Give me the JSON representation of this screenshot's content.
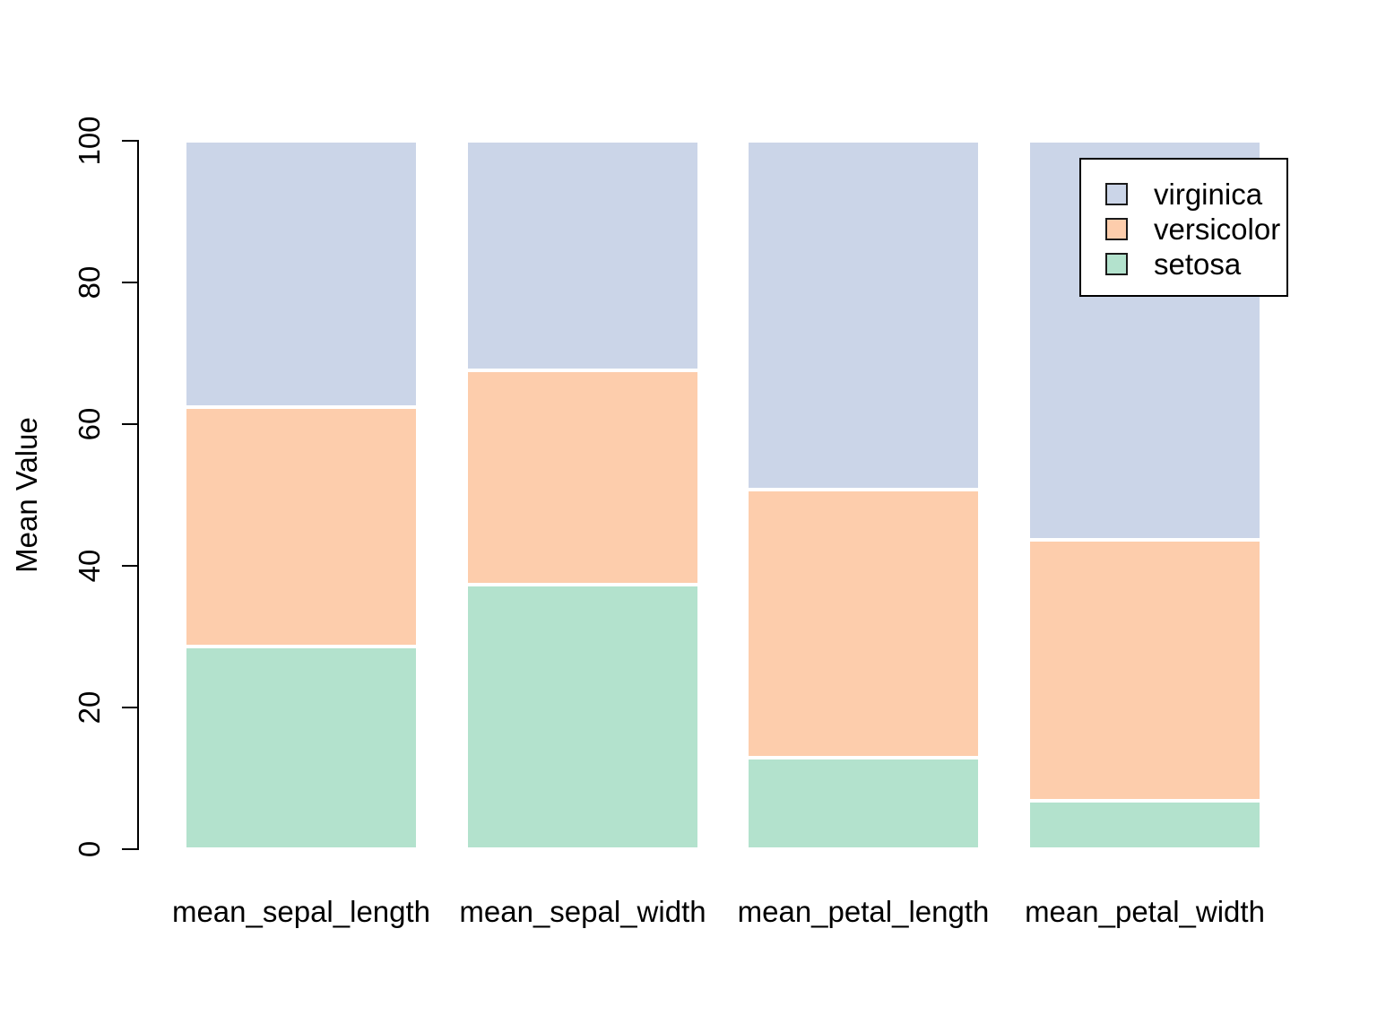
{
  "chart_data": {
    "type": "bar",
    "stacked": true,
    "title": "",
    "xlabel": "",
    "ylabel": "Mean Value",
    "ylim": [
      0,
      100
    ],
    "yticks": [
      0,
      20,
      40,
      60,
      80,
      100
    ],
    "grid": false,
    "categories": [
      "mean_sepal_length",
      "mean_sepal_width",
      "mean_petal_length",
      "mean_petal_width"
    ],
    "series": [
      {
        "name": "setosa",
        "color": "#B3E2CD",
        "values": [
          28.56,
          37.38,
          12.97,
          6.84
        ]
      },
      {
        "name": "versicolor",
        "color": "#FDCDAC",
        "values": [
          33.86,
          30.2,
          37.79,
          36.85
        ]
      },
      {
        "name": "virginica",
        "color": "#CBD5E8",
        "values": [
          37.58,
          32.42,
          49.24,
          56.31
        ]
      }
    ],
    "legend": {
      "position": "top-right",
      "entries": [
        "virginica",
        "versicolor",
        "setosa"
      ]
    },
    "axis_color": "#000000",
    "background_color": "#ffffff"
  }
}
